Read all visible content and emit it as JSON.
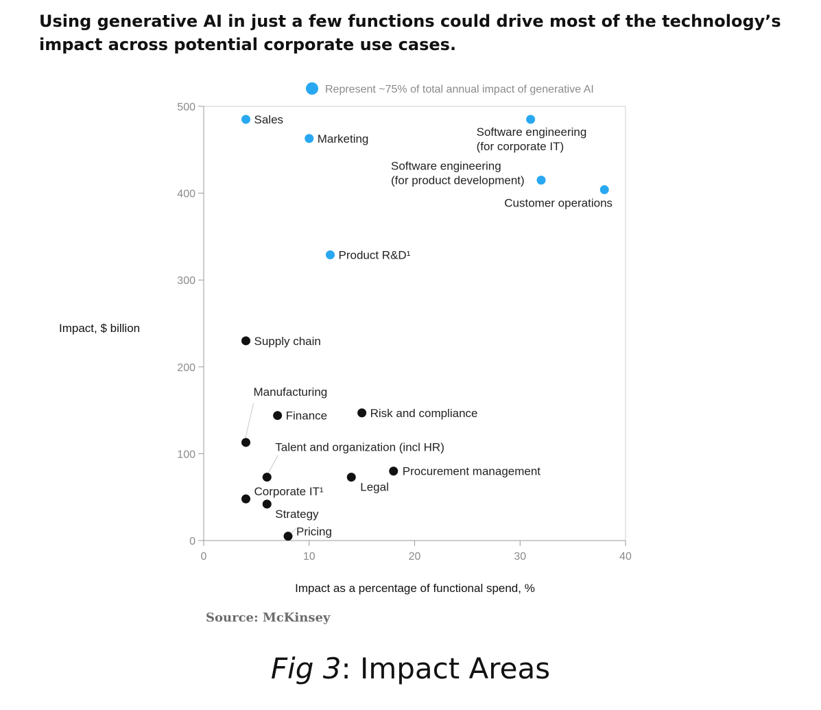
{
  "title": "Using generative AI in just a few functions could drive most of the technology’s impact across potential corporate use cases.",
  "source": "Source: McKinsey",
  "caption": {
    "fig": "Fig 3",
    "rest": ": Impact Areas"
  },
  "colors": {
    "highlight": "#29a8f2",
    "other": "#111111",
    "axis": "#999999",
    "tick_text": "#8a8a8a"
  },
  "chart_data": {
    "type": "scatter",
    "xlabel": "Impact as a percentage of functional spend, %",
    "ylabel": "Impact, $ billion",
    "xlim": [
      0,
      40
    ],
    "ylim": [
      0,
      500
    ],
    "xticks": [
      0,
      10,
      20,
      30,
      40
    ],
    "yticks": [
      0,
      100,
      200,
      300,
      400,
      500
    ],
    "legend": {
      "label": "Represent ~75% of total annual impact of generative AI",
      "position": "top"
    },
    "points": [
      {
        "label": [
          "Sales"
        ],
        "x": 4,
        "y": 485,
        "highlight": true
      },
      {
        "label": [
          "Marketing"
        ],
        "x": 10,
        "y": 463,
        "highlight": true
      },
      {
        "label": [
          "Software engineering",
          "(for corporate IT)"
        ],
        "x": 31,
        "y": 485,
        "highlight": true
      },
      {
        "label": [
          "Software engineering",
          "(for product development)"
        ],
        "x": 32,
        "y": 415,
        "highlight": true
      },
      {
        "label": [
          "Customer operations"
        ],
        "x": 38,
        "y": 404,
        "highlight": true
      },
      {
        "label": [
          "Product R&D¹"
        ],
        "x": 12,
        "y": 329,
        "highlight": true
      },
      {
        "label": [
          "Supply chain"
        ],
        "x": 4,
        "y": 230,
        "highlight": false
      },
      {
        "label": [
          "Manufacturing"
        ],
        "x": 4,
        "y": 113,
        "highlight": false
      },
      {
        "label": [
          "Finance"
        ],
        "x": 7,
        "y": 144,
        "highlight": false
      },
      {
        "label": [
          "Risk and compliance"
        ],
        "x": 15,
        "y": 147,
        "highlight": false
      },
      {
        "label": [
          "Talent and organization (incl HR)"
        ],
        "x": 6,
        "y": 73,
        "highlight": false
      },
      {
        "label": [
          "Procurement management"
        ],
        "x": 18,
        "y": 80,
        "highlight": false
      },
      {
        "label": [
          "Legal"
        ],
        "x": 14,
        "y": 73,
        "highlight": false
      },
      {
        "label": [
          "Corporate IT¹"
        ],
        "x": 4,
        "y": 48,
        "highlight": false
      },
      {
        "label": [
          "Strategy"
        ],
        "x": 6,
        "y": 42,
        "highlight": false
      },
      {
        "label": [
          "Pricing"
        ],
        "x": 8,
        "y": 5,
        "highlight": false
      }
    ]
  }
}
